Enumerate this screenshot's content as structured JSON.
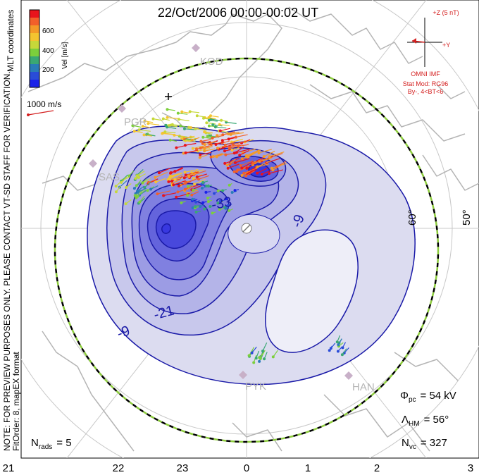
{
  "title": "22/Oct/2006 00:00-00:02 UT",
  "coordinates_label": "MLT coordinates",
  "colorbar": {
    "label": "Vel [m/s]",
    "ticks": [
      "600",
      "400",
      "200"
    ],
    "colors": [
      "#e8141c",
      "#f2602a",
      "#f49a28",
      "#f4c430",
      "#c6d83a",
      "#7ccf3c",
      "#3aa874",
      "#2a7cb8",
      "#2a4cd8",
      "#1a22e8"
    ]
  },
  "reference_vector": {
    "label": "1000 m/s",
    "color": "#d42020"
  },
  "imf": {
    "top_label": "+Z (5 nT)",
    "right_label": "+Y",
    "source": "OMNI IMF",
    "model": "Stat Mod: RG96",
    "condition": "By-, 4<BT<6",
    "color": "#d42020"
  },
  "stations": [
    "KOD",
    "PGR",
    "SAS",
    "PYK",
    "HAN"
  ],
  "contour_labels": [
    "-33",
    "-21",
    "-9",
    "-9"
  ],
  "latitude_labels": [
    "60°",
    "50°"
  ],
  "note_line1": "NOTE: FOR PREVIEW PURPOSES ONLY. PLEASE CONTACT VT-SD STAFF FOR VERIFICATION.",
  "note_line2": "FitOrder: 8, mapEX format",
  "stats": {
    "phi_symbol": "Φ",
    "phi_sub": "pc",
    "phi_value": "= 54 kV",
    "lambda_symbol": "Λ",
    "lambda_sub": "HM",
    "lambda_value": "= 56°",
    "nvc_symbol": "N",
    "nvc_sub": "vc",
    "nvc_value": "= 327",
    "nrads_symbol": "N",
    "nrads_sub": "rads",
    "nrads_value": "= 5"
  },
  "mlt_axis": [
    "21",
    "22",
    "23",
    "0",
    "1",
    "2",
    "3"
  ],
  "colors": {
    "contour": "#1a1aa8",
    "fill_light": "#dcdcf0",
    "fill_dark": "#3838e0",
    "land": "#b4b4b4",
    "hm_boundary_dash": "#8ccc3c"
  }
}
